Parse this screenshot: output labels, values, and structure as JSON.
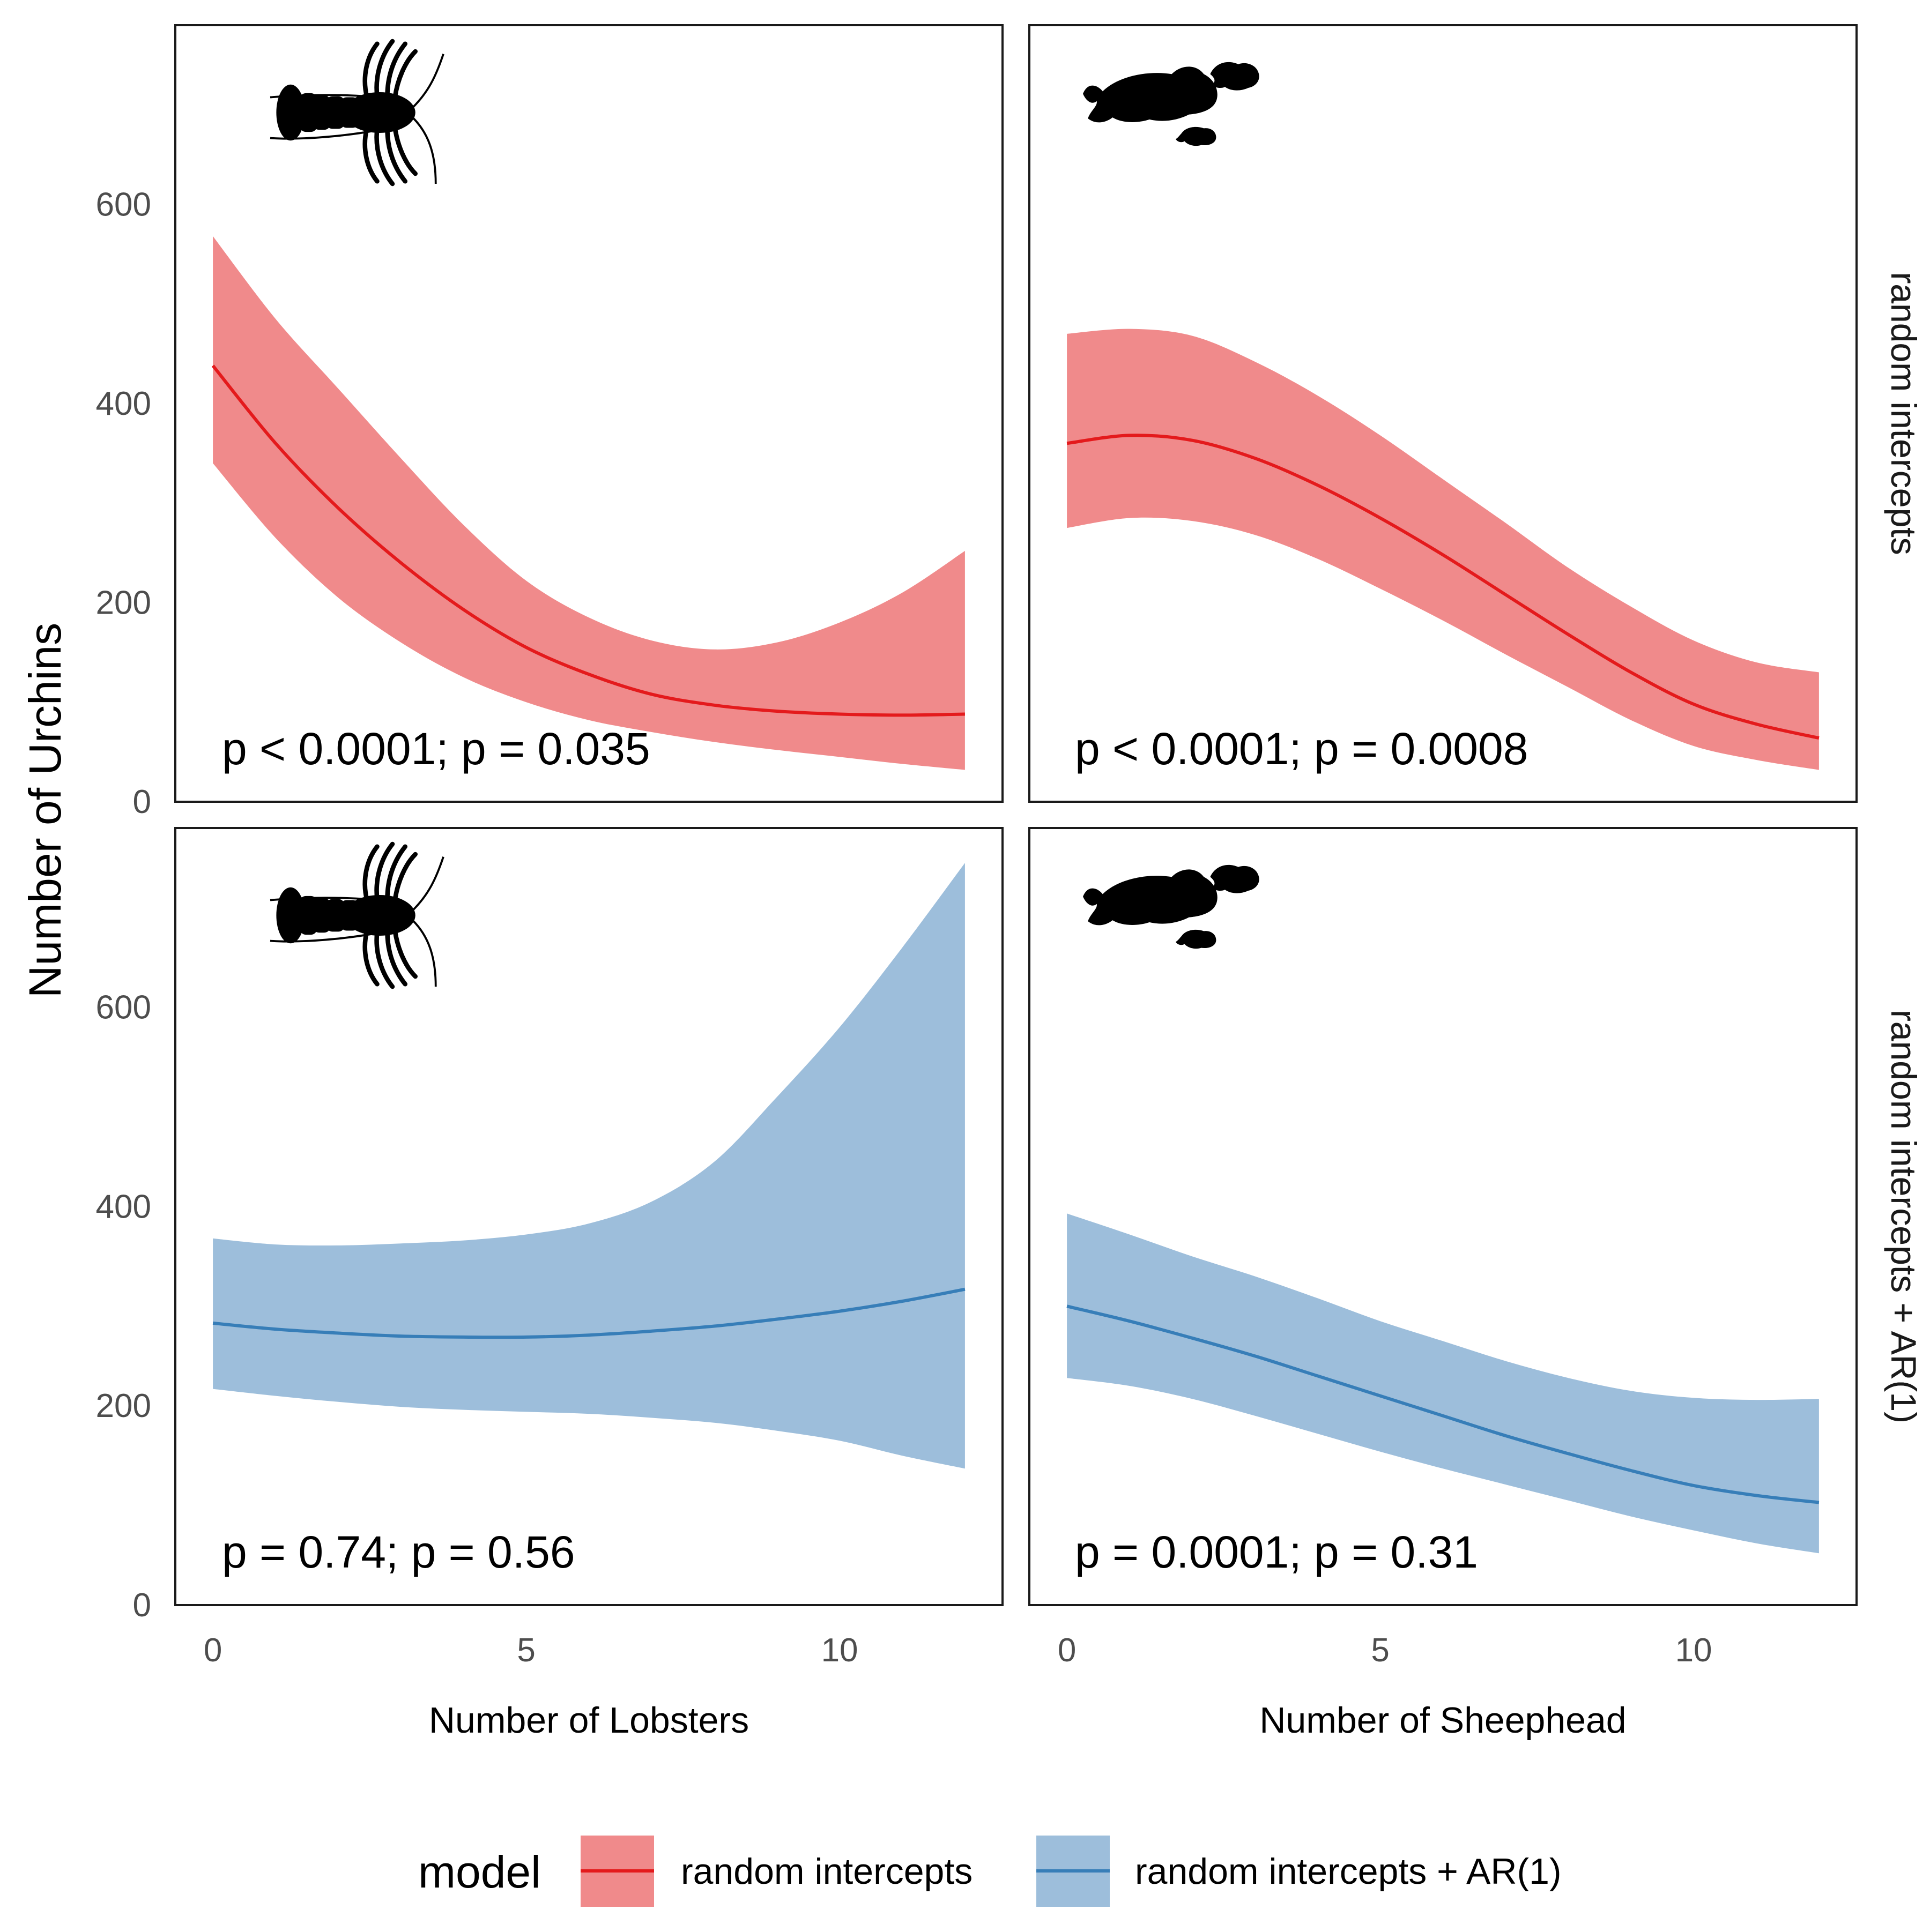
{
  "chart_data": {
    "type": "area",
    "ylabel": "Number of Urchins",
    "ylim": [
      0,
      780
    ],
    "yticks": [
      0,
      200,
      400,
      600
    ],
    "xticks": [
      0,
      5,
      10
    ],
    "columns": [
      {
        "xlabel": "Number of Lobsters",
        "xlim": [
          -0.6,
          12.6
        ],
        "icon": "lobster-silhouette"
      },
      {
        "xlabel": "Number of Sheephead",
        "xlim": [
          -0.6,
          12.6
        ],
        "icon": "sheephead-fish-silhouette"
      }
    ],
    "rows": [
      {
        "strip": "random intercepts",
        "color": "#e41a1c",
        "fill": "#f08a8b"
      },
      {
        "strip": "random intercepts + AR(1)",
        "color": "#377eb8",
        "fill": "#9dbedb"
      }
    ],
    "panels": [
      {
        "row": 0,
        "col": 0,
        "annotation": "p < 0.0001; p = 0.035",
        "x": [
          0,
          1,
          2,
          3,
          4,
          5,
          6,
          7,
          8,
          9,
          10,
          11,
          12
        ],
        "fit": [
          438,
          360,
          295,
          240,
          193,
          155,
          128,
          108,
          97,
          91,
          88,
          87,
          88
        ],
        "lower": [
          340,
          265,
          205,
          160,
          125,
          100,
          82,
          70,
          60,
          52,
          45,
          38,
          32
        ],
        "upper": [
          568,
          485,
          415,
          345,
          278,
          222,
          185,
          162,
          153,
          160,
          180,
          210,
          252
        ]
      },
      {
        "row": 0,
        "col": 1,
        "annotation": "p < 0.0001; p = 0.0008",
        "x": [
          0,
          1,
          2,
          3,
          4,
          5,
          6,
          7,
          8,
          9,
          10,
          11,
          12
        ],
        "fit": [
          360,
          368,
          363,
          345,
          318,
          285,
          248,
          208,
          168,
          130,
          98,
          78,
          64
        ],
        "lower": [
          275,
          285,
          282,
          268,
          244,
          214,
          182,
          148,
          115,
          82,
          56,
          42,
          32
        ],
        "upper": [
          470,
          475,
          468,
          442,
          408,
          368,
          324,
          280,
          235,
          196,
          162,
          140,
          130
        ]
      },
      {
        "row": 1,
        "col": 0,
        "annotation": "p = 0.74; p = 0.56",
        "x": [
          0,
          1,
          2,
          3,
          4,
          5,
          6,
          7,
          8,
          9,
          10,
          11,
          12
        ],
        "fit": [
          283,
          277,
          273,
          270,
          269,
          269,
          271,
          275,
          280,
          287,
          295,
          305,
          317
        ],
        "lower": [
          217,
          210,
          204,
          199,
          196,
          194,
          192,
          188,
          183,
          175,
          165,
          150,
          137
        ],
        "upper": [
          368,
          362,
          361,
          363,
          366,
          372,
          383,
          405,
          445,
          510,
          580,
          660,
          745
        ]
      },
      {
        "row": 1,
        "col": 1,
        "annotation": "p = 0.0001; p = 0.31",
        "x": [
          0,
          1,
          2,
          3,
          4,
          5,
          6,
          7,
          8,
          9,
          10,
          11,
          12
        ],
        "fit": [
          300,
          285,
          268,
          250,
          230,
          210,
          190,
          170,
          152,
          135,
          120,
          110,
          103
        ],
        "lower": [
          228,
          220,
          207,
          190,
          172,
          154,
          137,
          121,
          105,
          89,
          75,
          62,
          52
        ],
        "upper": [
          393,
          372,
          350,
          330,
          308,
          285,
          265,
          245,
          228,
          215,
          208,
          206,
          207
        ]
      }
    ],
    "legend": {
      "title": "model",
      "position": "bottom",
      "items": [
        "random intercepts",
        "random intercepts + AR(1)"
      ]
    },
    "grid": false
  }
}
